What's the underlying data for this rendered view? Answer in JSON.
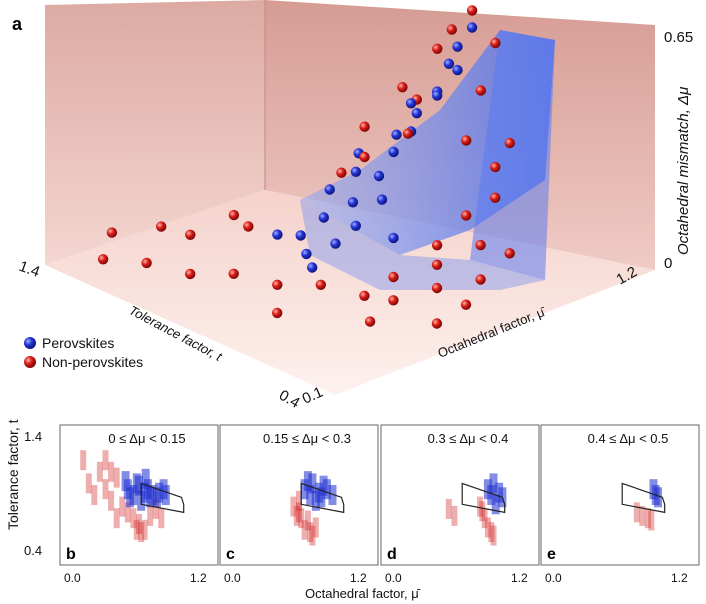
{
  "figure": {
    "colors": {
      "perovskite": "#1f2fd0",
      "non_perovskite": "#d01818",
      "wall": "#e9c3bd",
      "floor": "#f6dcd6",
      "stability_region": "#6a8cf2",
      "box": "#222222"
    }
  },
  "chart_data": [
    {
      "panel": "a",
      "type": "scatter3d",
      "xlabel": "Octahedral factor, μ̄",
      "ylabel": "Tolerance factor, t",
      "zlabel": "Octahedral mismatch, Δμ",
      "x_ticks": [
        "0.1",
        "1.2"
      ],
      "y_ticks": [
        "1.4",
        "0.4"
      ],
      "z_ticks": [
        "0",
        "0.65"
      ],
      "xlim": [
        0.1,
        1.2
      ],
      "ylim": [
        0.4,
        1.4
      ],
      "zlim": [
        0,
        0.65
      ],
      "legend": [
        "Perovskites",
        "Non-perovskites"
      ],
      "legend_position": "bottom-left",
      "series": [
        {
          "name": "Perovskites",
          "points": [
            [
              0.55,
              0.95,
              0.05
            ],
            [
              0.6,
              0.9,
              0.08
            ],
            [
              0.5,
              1.0,
              0.1
            ],
            [
              0.65,
              0.88,
              0.12
            ],
            [
              0.58,
              0.92,
              0.15
            ],
            [
              0.62,
              0.86,
              0.2
            ],
            [
              0.7,
              0.85,
              0.25
            ],
            [
              0.68,
              0.9,
              0.3
            ],
            [
              0.75,
              0.84,
              0.35
            ],
            [
              0.8,
              0.82,
              0.4
            ],
            [
              0.85,
              0.8,
              0.45
            ],
            [
              0.9,
              0.78,
              0.5
            ],
            [
              0.72,
              0.95,
              0.22
            ],
            [
              0.66,
              0.98,
              0.18
            ],
            [
              0.78,
              0.88,
              0.28
            ],
            [
              0.82,
              0.86,
              0.33
            ],
            [
              0.88,
              0.83,
              0.42
            ],
            [
              0.92,
              0.8,
              0.55
            ],
            [
              0.95,
              0.78,
              0.6
            ],
            [
              0.52,
              0.9,
              0.04
            ],
            [
              0.6,
              1.02,
              0.06
            ],
            [
              0.7,
              0.8,
              0.1
            ],
            [
              0.76,
              0.9,
              0.15
            ],
            [
              0.86,
              0.9,
              0.38
            ],
            [
              0.94,
              0.85,
              0.48
            ]
          ]
        },
        {
          "name": "Non-perovskites",
          "points": [
            [
              0.2,
              1.3,
              0.02
            ],
            [
              0.25,
              1.2,
              0.03
            ],
            [
              0.3,
              1.1,
              0.02
            ],
            [
              0.35,
              1.0,
              0.04
            ],
            [
              0.4,
              0.9,
              0.03
            ],
            [
              0.45,
              0.8,
              0.05
            ],
            [
              0.5,
              0.7,
              0.04
            ],
            [
              0.55,
              0.65,
              0.03
            ],
            [
              0.6,
              0.7,
              0.06
            ],
            [
              0.65,
              0.6,
              0.05
            ],
            [
              0.7,
              0.65,
              0.08
            ],
            [
              0.75,
              0.7,
              0.1
            ],
            [
              0.8,
              0.6,
              0.12
            ],
            [
              0.85,
              0.7,
              0.15
            ],
            [
              0.9,
              0.65,
              0.2
            ],
            [
              0.95,
              0.7,
              0.25
            ],
            [
              1.0,
              0.7,
              0.3
            ],
            [
              0.72,
              1.0,
              0.2
            ],
            [
              0.8,
              1.0,
              0.3
            ],
            [
              0.88,
              0.95,
              0.4
            ],
            [
              0.95,
              0.9,
              0.5
            ],
            [
              0.98,
              0.88,
              0.55
            ],
            [
              1.02,
              0.85,
              0.6
            ],
            [
              0.6,
              0.8,
              0.35
            ],
            [
              0.45,
              1.05,
              0.12
            ],
            [
              0.35,
              1.25,
              0.08
            ],
            [
              0.28,
              1.35,
              0.05
            ],
            [
              0.4,
              1.2,
              0.06
            ],
            [
              0.5,
              1.15,
              0.1
            ],
            [
              0.55,
              0.5,
              0.02
            ],
            [
              0.65,
              0.5,
              0.04
            ],
            [
              0.75,
              0.55,
              0.06
            ],
            [
              0.85,
              0.55,
              0.1
            ],
            [
              0.42,
              0.6,
              0.03
            ],
            [
              0.3,
              0.8,
              0.02
            ],
            [
              0.9,
              0.75,
              0.32
            ],
            [
              0.98,
              0.78,
              0.42
            ],
            [
              1.05,
              0.8,
              0.52
            ],
            [
              0.7,
              0.75,
              0.4
            ],
            [
              0.78,
              0.8,
              0.45
            ]
          ]
        }
      ]
    },
    {
      "panel": "b",
      "type": "scatter",
      "range_label": "0 ≤ Δμ < 0.15",
      "xlim": [
        0.0,
        1.2
      ],
      "ylim": [
        0.4,
        1.4
      ],
      "perovskite_rects": [
        [
          0.5,
          0.95
        ],
        [
          0.55,
          0.9
        ],
        [
          0.6,
          0.98
        ],
        [
          0.65,
          0.92
        ],
        [
          0.7,
          0.88
        ],
        [
          0.58,
          1.0
        ],
        [
          0.62,
          0.85
        ],
        [
          0.68,
          0.95
        ],
        [
          0.72,
          0.9
        ],
        [
          0.78,
          0.92
        ],
        [
          0.82,
          0.95
        ],
        [
          0.76,
          0.88
        ],
        [
          0.52,
          0.88
        ],
        [
          0.48,
          1.02
        ],
        [
          0.66,
          1.04
        ],
        [
          0.84,
          0.9
        ]
      ],
      "non_perovskite_rects": [
        [
          0.1,
          1.2
        ],
        [
          0.15,
          1.0
        ],
        [
          0.2,
          0.9
        ],
        [
          0.25,
          1.1
        ],
        [
          0.3,
          0.95
        ],
        [
          0.35,
          0.85
        ],
        [
          0.4,
          1.05
        ],
        [
          0.45,
          0.8
        ],
        [
          0.5,
          0.75
        ],
        [
          0.55,
          0.7
        ],
        [
          0.6,
          0.65
        ],
        [
          0.65,
          0.6
        ],
        [
          0.7,
          0.72
        ],
        [
          0.75,
          0.78
        ],
        [
          0.8,
          0.7
        ],
        [
          0.3,
          1.2
        ],
        [
          0.4,
          0.7
        ],
        [
          0.35,
          1.1
        ],
        [
          0.58,
          0.6
        ],
        [
          0.62,
          0.58
        ]
      ]
    },
    {
      "panel": "c",
      "type": "scatter",
      "range_label": "0.15 ≤ Δμ < 0.3",
      "xlim": [
        0.0,
        1.2
      ],
      "ylim": [
        0.4,
        1.4
      ],
      "perovskite_rects": [
        [
          0.65,
          0.95
        ],
        [
          0.7,
          0.9
        ],
        [
          0.72,
          1.0
        ],
        [
          0.78,
          0.92
        ],
        [
          0.8,
          0.88
        ],
        [
          0.85,
          0.95
        ],
        [
          0.9,
          0.9
        ],
        [
          0.75,
          0.85
        ],
        [
          0.68,
          1.02
        ],
        [
          0.82,
          0.98
        ]
      ],
      "non_perovskite_rects": [
        [
          0.55,
          0.8
        ],
        [
          0.6,
          0.75
        ],
        [
          0.62,
          0.7
        ],
        [
          0.65,
          0.6
        ],
        [
          0.7,
          0.58
        ],
        [
          0.75,
          0.62
        ],
        [
          0.68,
          0.68
        ],
        [
          0.6,
          0.85
        ],
        [
          0.58,
          0.72
        ],
        [
          0.72,
          0.55
        ]
      ]
    },
    {
      "panel": "d",
      "type": "scatter",
      "range_label": "0.3 ≤ Δμ < 0.4",
      "xlim": [
        0.0,
        1.2
      ],
      "ylim": [
        0.4,
        1.4
      ],
      "perovskite_rects": [
        [
          0.85,
          0.95
        ],
        [
          0.88,
          0.9
        ],
        [
          0.9,
          1.0
        ],
        [
          0.95,
          0.92
        ],
        [
          0.98,
          0.88
        ],
        [
          0.92,
          0.82
        ]
      ],
      "non_perovskite_rects": [
        [
          0.5,
          0.78
        ],
        [
          0.55,
          0.72
        ],
        [
          0.8,
          0.76
        ],
        [
          0.82,
          0.7
        ],
        [
          0.85,
          0.62
        ],
        [
          0.88,
          0.58
        ],
        [
          0.9,
          0.55
        ],
        [
          0.78,
          0.8
        ]
      ]
    },
    {
      "panel": "e",
      "type": "scatter",
      "range_label": "0.4 ≤ Δμ < 0.5",
      "xlim": [
        0.0,
        1.2
      ],
      "ylim": [
        0.4,
        1.4
      ],
      "perovskite_rects": [
        [
          0.9,
          0.95
        ],
        [
          0.92,
          0.9
        ],
        [
          0.94,
          0.88
        ]
      ],
      "non_perovskite_rects": [
        [
          0.75,
          0.75
        ],
        [
          0.8,
          0.72
        ],
        [
          0.85,
          0.7
        ],
        [
          0.88,
          0.68
        ]
      ]
    }
  ],
  "panels_common": {
    "xlabel": "Octahedral factor, μ̄",
    "ylabel": "Tolerance factor, t",
    "x_ticks": [
      "0.0",
      "1.2"
    ],
    "y_ticks": [
      "1.4",
      "0.4"
    ],
    "stability_box": [
      [
        0.62,
        1.0
      ],
      [
        0.98,
        0.88
      ],
      [
        1.0,
        0.82
      ],
      [
        1.0,
        0.75
      ],
      [
        0.62,
        0.82
      ]
    ]
  }
}
